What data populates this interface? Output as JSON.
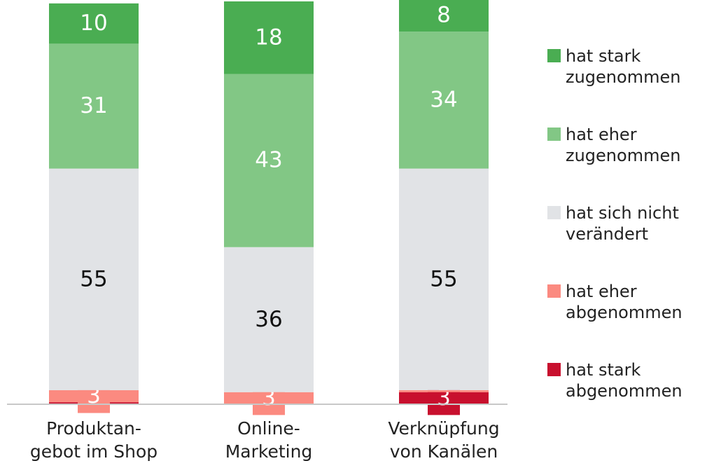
{
  "chart_data": {
    "type": "stacked_bar",
    "categories": [
      "Produktan-\ngebot im Shop",
      "Online-\nMarketing",
      "Verknüpfung\nvon Kanälen"
    ],
    "series": [
      {
        "name": "hat stark\nabgenommen",
        "color": "#c8102e",
        "values": [
          0.5,
          0,
          3
        ]
      },
      {
        "name": "hat eher\nabgenommen",
        "color": "#fb8a80",
        "values": [
          3,
          3,
          0.5
        ]
      },
      {
        "name": "hat sich nicht\nverändert",
        "color": "#e1e3e6",
        "values": [
          55,
          36,
          55
        ]
      },
      {
        "name": "hat eher\nzugenommen",
        "color": "#82c785",
        "values": [
          31,
          43,
          34
        ]
      },
      {
        "name": "hat stark\nzugenommen",
        "color": "#4aad52",
        "values": [
          10,
          18,
          8
        ]
      }
    ],
    "ylim": [
      0,
      100
    ]
  }
}
